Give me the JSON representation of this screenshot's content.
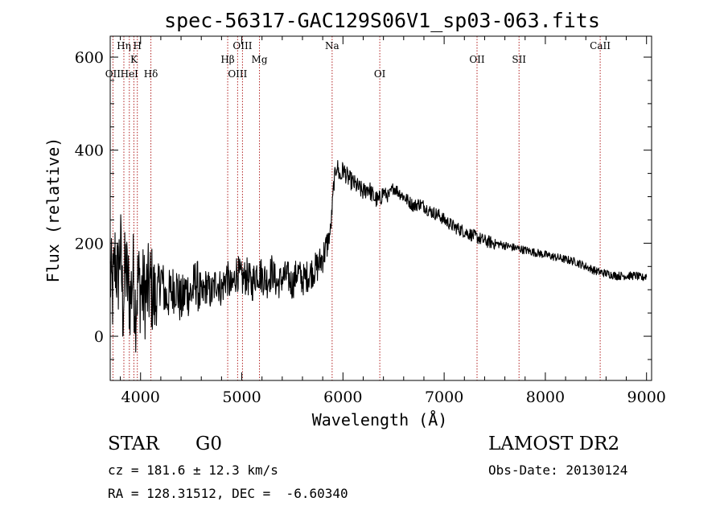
{
  "chart_data": {
    "type": "line",
    "title": "spec-56317-GAC129S06V1_sp03-063.fits",
    "xlabel": "Wavelength (Å)",
    "ylabel": "Flux (relative)",
    "xlim": [
      3700,
      9050
    ],
    "ylim": [
      -95,
      645
    ],
    "xticks": [
      4000,
      5000,
      6000,
      7000,
      8000,
      9000
    ],
    "yticks": [
      0,
      200,
      400,
      600
    ],
    "grid": false,
    "line_color": "#000000",
    "marker_color": "#b22222",
    "lines": [
      {
        "label": "OII",
        "x": 3727,
        "row": 3
      },
      {
        "label": "Hη",
        "x": 3835,
        "row": 1
      },
      {
        "label": "HeI",
        "x": 3889,
        "row": 3
      },
      {
        "label": "K",
        "x": 3934,
        "row": 2
      },
      {
        "label": "H",
        "x": 3968,
        "row": 1
      },
      {
        "label": "Hδ",
        "x": 4102,
        "row": 3
      },
      {
        "label": "Hβ",
        "x": 4861,
        "row": 2
      },
      {
        "label": "OIII",
        "x": 4959,
        "row": 3
      },
      {
        "label": "OIII",
        "x": 5007,
        "row": 1
      },
      {
        "label": "Mg",
        "x": 5175,
        "row": 2
      },
      {
        "label": "Na",
        "x": 5893,
        "row": 1
      },
      {
        "label": "OI",
        "x": 6364,
        "row": 3
      },
      {
        "label": "OII",
        "x": 7325,
        "row": 2
      },
      {
        "label": "SII",
        "x": 7740,
        "row": 2
      },
      {
        "label": "CaII",
        "x": 8542,
        "row": 1
      }
    ],
    "series": [
      {
        "x": [
          3700,
          3725,
          3750,
          3775,
          3800,
          3825,
          3850,
          3875,
          3900,
          3925,
          3950,
          3975,
          4000,
          4050,
          4100,
          4150,
          4200,
          4250,
          4300,
          4350,
          4400,
          4450,
          4500,
          4550,
          4600,
          4650,
          4700,
          4750,
          4800,
          4850,
          4900,
          4950,
          5000,
          5050,
          5100,
          5150,
          5200,
          5250,
          5300,
          5350,
          5400,
          5450,
          5500,
          5550,
          5600,
          5650,
          5700,
          5750,
          5800,
          5850,
          5880,
          5910,
          5940,
          5960,
          5980,
          6000,
          6050,
          6100,
          6150,
          6200,
          6250,
          6300,
          6350,
          6400,
          6450,
          6500,
          6550,
          6600,
          6650,
          6700,
          6750,
          6800,
          6850,
          6900,
          6950,
          7000,
          7100,
          7200,
          7300,
          7400,
          7500,
          7600,
          7700,
          7800,
          7900,
          8000,
          8100,
          8200,
          8300,
          8400,
          8500,
          8600,
          8700,
          8800,
          8900,
          8950,
          9000
        ],
        "values": [
          130,
          90,
          170,
          120,
          200,
          60,
          150,
          110,
          80,
          140,
          60,
          120,
          100,
          90,
          110,
          70,
          130,
          80,
          95,
          110,
          70,
          100,
          90,
          120,
          80,
          110,
          90,
          120,
          100,
          130,
          100,
          140,
          120,
          130,
          110,
          140,
          130,
          120,
          140,
          110,
          125,
          130,
          110,
          140,
          120,
          130,
          140,
          150,
          170,
          200,
          230,
          330,
          370,
          350,
          340,
          360,
          340,
          330,
          320,
          310,
          320,
          300,
          290,
          310,
          300,
          320,
          310,
          300,
          290,
          280,
          285,
          280,
          270,
          265,
          260,
          250,
          235,
          225,
          215,
          205,
          200,
          195,
          190,
          185,
          180,
          175,
          170,
          165,
          160,
          150,
          140,
          135,
          130,
          130,
          130,
          125,
          130
        ]
      }
    ]
  },
  "info": {
    "object_class": "STAR",
    "subclass": "G0",
    "survey": "LAMOST DR2",
    "redshift": "cz = 181.6 ± 12.3 km/s",
    "obs_date": "Obs-Date: 20130124",
    "coords": "RA = 128.31512, DEC =  -6.60340"
  }
}
